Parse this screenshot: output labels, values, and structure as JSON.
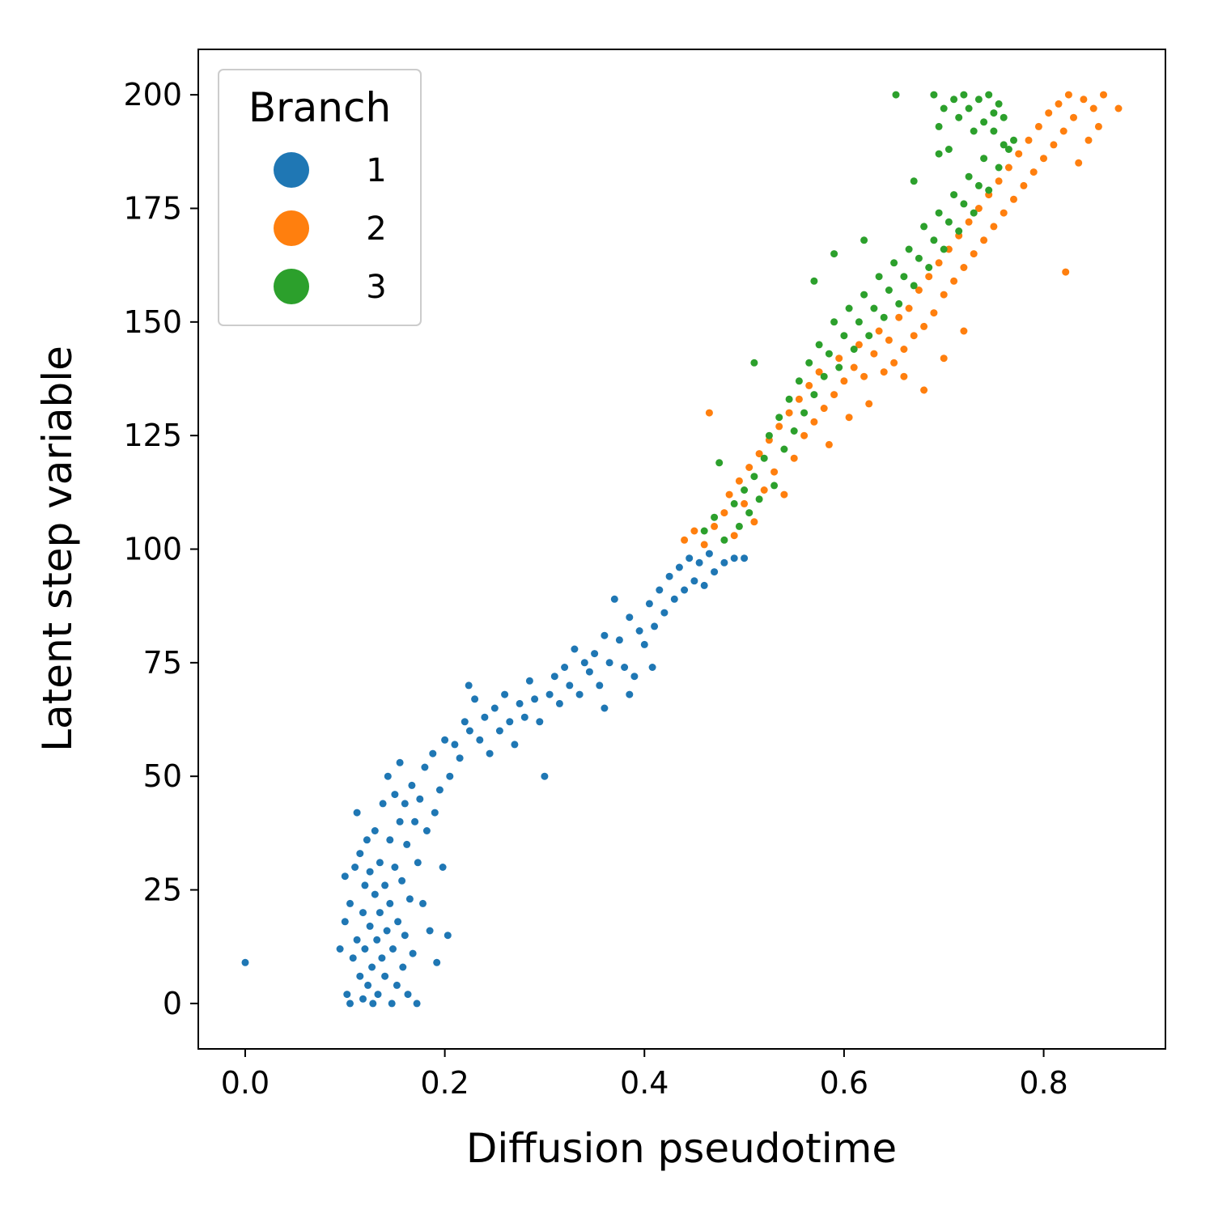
{
  "chart_data": {
    "type": "scatter",
    "xlabel": "Diffusion pseudotime",
    "ylabel": "Latent step variable",
    "xlim": [
      -0.047,
      0.922
    ],
    "ylim": [
      -10,
      210
    ],
    "x_ticks": [
      0.0,
      0.2,
      0.4,
      0.6,
      0.8
    ],
    "x_tick_labels": [
      "0.0",
      "0.2",
      "0.4",
      "0.6",
      "0.8"
    ],
    "y_ticks": [
      0,
      25,
      50,
      75,
      100,
      125,
      150,
      175,
      200
    ],
    "y_tick_labels": [
      "0",
      "25",
      "50",
      "75",
      "100",
      "125",
      "150",
      "175",
      "200"
    ],
    "grid": false,
    "legend": {
      "title": "Branch",
      "placement": "top-left"
    },
    "series": [
      {
        "name": "1",
        "color": "#1f77b4",
        "points": [
          [
            0.0,
            9
          ],
          [
            0.095,
            12
          ],
          [
            0.1,
            28
          ],
          [
            0.1,
            18
          ],
          [
            0.102,
            2
          ],
          [
            0.105,
            0
          ],
          [
            0.105,
            22
          ],
          [
            0.108,
            10
          ],
          [
            0.11,
            30
          ],
          [
            0.112,
            42
          ],
          [
            0.112,
            14
          ],
          [
            0.115,
            6
          ],
          [
            0.115,
            33
          ],
          [
            0.118,
            20
          ],
          [
            0.118,
            1
          ],
          [
            0.12,
            26
          ],
          [
            0.12,
            12
          ],
          [
            0.122,
            36
          ],
          [
            0.123,
            4
          ],
          [
            0.125,
            17
          ],
          [
            0.125,
            29
          ],
          [
            0.127,
            8
          ],
          [
            0.128,
            0
          ],
          [
            0.13,
            24
          ],
          [
            0.13,
            38
          ],
          [
            0.132,
            14
          ],
          [
            0.133,
            2
          ],
          [
            0.135,
            20
          ],
          [
            0.135,
            31
          ],
          [
            0.137,
            10
          ],
          [
            0.138,
            44
          ],
          [
            0.14,
            26
          ],
          [
            0.14,
            6
          ],
          [
            0.142,
            16
          ],
          [
            0.143,
            50
          ],
          [
            0.145,
            36
          ],
          [
            0.145,
            22
          ],
          [
            0.147,
            0
          ],
          [
            0.148,
            12
          ],
          [
            0.15,
            46
          ],
          [
            0.15,
            30
          ],
          [
            0.152,
            4
          ],
          [
            0.153,
            18
          ],
          [
            0.155,
            40
          ],
          [
            0.155,
            53
          ],
          [
            0.157,
            27
          ],
          [
            0.158,
            8
          ],
          [
            0.16,
            15
          ],
          [
            0.16,
            44
          ],
          [
            0.162,
            35
          ],
          [
            0.163,
            2
          ],
          [
            0.165,
            23
          ],
          [
            0.167,
            48
          ],
          [
            0.168,
            11
          ],
          [
            0.17,
            40
          ],
          [
            0.172,
            0
          ],
          [
            0.173,
            31
          ],
          [
            0.175,
            45
          ],
          [
            0.178,
            22
          ],
          [
            0.18,
            52
          ],
          [
            0.182,
            38
          ],
          [
            0.185,
            16
          ],
          [
            0.188,
            55
          ],
          [
            0.19,
            42
          ],
          [
            0.192,
            9
          ],
          [
            0.195,
            47
          ],
          [
            0.198,
            30
          ],
          [
            0.2,
            58
          ],
          [
            0.203,
            15
          ],
          [
            0.205,
            50
          ],
          [
            0.21,
            57
          ],
          [
            0.215,
            54
          ],
          [
            0.22,
            62
          ],
          [
            0.224,
            70
          ],
          [
            0.225,
            60
          ],
          [
            0.23,
            67
          ],
          [
            0.235,
            58
          ],
          [
            0.24,
            63
          ],
          [
            0.245,
            55
          ],
          [
            0.25,
            65
          ],
          [
            0.255,
            60
          ],
          [
            0.26,
            68
          ],
          [
            0.265,
            62
          ],
          [
            0.27,
            57
          ],
          [
            0.275,
            66
          ],
          [
            0.28,
            63
          ],
          [
            0.285,
            71
          ],
          [
            0.29,
            67
          ],
          [
            0.295,
            62
          ],
          [
            0.3,
            50
          ],
          [
            0.305,
            68
          ],
          [
            0.31,
            72
          ],
          [
            0.315,
            66
          ],
          [
            0.32,
            74
          ],
          [
            0.325,
            70
          ],
          [
            0.33,
            78
          ],
          [
            0.335,
            68
          ],
          [
            0.34,
            75
          ],
          [
            0.345,
            73
          ],
          [
            0.35,
            77
          ],
          [
            0.355,
            70
          ],
          [
            0.36,
            81
          ],
          [
            0.365,
            75
          ],
          [
            0.37,
            89
          ],
          [
            0.375,
            80
          ],
          [
            0.38,
            74
          ],
          [
            0.385,
            85
          ],
          [
            0.39,
            72
          ],
          [
            0.395,
            82
          ],
          [
            0.4,
            79
          ],
          [
            0.405,
            88
          ],
          [
            0.41,
            83
          ],
          [
            0.415,
            91
          ],
          [
            0.42,
            86
          ],
          [
            0.425,
            94
          ],
          [
            0.43,
            89
          ],
          [
            0.435,
            96
          ],
          [
            0.44,
            91
          ],
          [
            0.445,
            98
          ],
          [
            0.45,
            93
          ],
          [
            0.455,
            97
          ],
          [
            0.46,
            92
          ],
          [
            0.465,
            99
          ],
          [
            0.47,
            95
          ],
          [
            0.48,
            97
          ],
          [
            0.49,
            98
          ],
          [
            0.5,
            98
          ],
          [
            0.408,
            74
          ],
          [
            0.385,
            68
          ],
          [
            0.36,
            65
          ]
        ]
      },
      {
        "name": "2",
        "color": "#ff7f0e",
        "points": [
          [
            0.44,
            102
          ],
          [
            0.45,
            104
          ],
          [
            0.46,
            101
          ],
          [
            0.465,
            130
          ],
          [
            0.47,
            105
          ],
          [
            0.48,
            108
          ],
          [
            0.485,
            112
          ],
          [
            0.49,
            103
          ],
          [
            0.495,
            115
          ],
          [
            0.5,
            110
          ],
          [
            0.505,
            118
          ],
          [
            0.51,
            106
          ],
          [
            0.515,
            121
          ],
          [
            0.52,
            113
          ],
          [
            0.525,
            124
          ],
          [
            0.53,
            117
          ],
          [
            0.535,
            127
          ],
          [
            0.54,
            112
          ],
          [
            0.545,
            130
          ],
          [
            0.55,
            120
          ],
          [
            0.555,
            133
          ],
          [
            0.56,
            125
          ],
          [
            0.565,
            136
          ],
          [
            0.57,
            128
          ],
          [
            0.575,
            139
          ],
          [
            0.58,
            131
          ],
          [
            0.585,
            123
          ],
          [
            0.59,
            134
          ],
          [
            0.595,
            142
          ],
          [
            0.6,
            137
          ],
          [
            0.605,
            129
          ],
          [
            0.61,
            140
          ],
          [
            0.615,
            145
          ],
          [
            0.62,
            138
          ],
          [
            0.625,
            132
          ],
          [
            0.63,
            143
          ],
          [
            0.635,
            148
          ],
          [
            0.64,
            139
          ],
          [
            0.645,
            146
          ],
          [
            0.65,
            141
          ],
          [
            0.655,
            151
          ],
          [
            0.66,
            144
          ],
          [
            0.665,
            153
          ],
          [
            0.67,
            147
          ],
          [
            0.675,
            157
          ],
          [
            0.68,
            149
          ],
          [
            0.685,
            160
          ],
          [
            0.69,
            152
          ],
          [
            0.695,
            163
          ],
          [
            0.7,
            156
          ],
          [
            0.705,
            166
          ],
          [
            0.71,
            159
          ],
          [
            0.715,
            169
          ],
          [
            0.72,
            162
          ],
          [
            0.725,
            172
          ],
          [
            0.73,
            165
          ],
          [
            0.735,
            175
          ],
          [
            0.74,
            168
          ],
          [
            0.745,
            178
          ],
          [
            0.75,
            171
          ],
          [
            0.755,
            181
          ],
          [
            0.76,
            174
          ],
          [
            0.765,
            184
          ],
          [
            0.77,
            177
          ],
          [
            0.775,
            187
          ],
          [
            0.78,
            180
          ],
          [
            0.785,
            190
          ],
          [
            0.79,
            183
          ],
          [
            0.795,
            193
          ],
          [
            0.8,
            186
          ],
          [
            0.805,
            196
          ],
          [
            0.81,
            189
          ],
          [
            0.815,
            198
          ],
          [
            0.82,
            192
          ],
          [
            0.825,
            200
          ],
          [
            0.83,
            195
          ],
          [
            0.835,
            185
          ],
          [
            0.84,
            199
          ],
          [
            0.845,
            190
          ],
          [
            0.85,
            197
          ],
          [
            0.855,
            193
          ],
          [
            0.86,
            200
          ],
          [
            0.875,
            197
          ],
          [
            0.822,
            161
          ],
          [
            0.7,
            142
          ],
          [
            0.72,
            148
          ],
          [
            0.68,
            135
          ],
          [
            0.66,
            138
          ]
        ]
      },
      {
        "name": "3",
        "color": "#2ca02c",
        "points": [
          [
            0.46,
            104
          ],
          [
            0.47,
            107
          ],
          [
            0.475,
            119
          ],
          [
            0.48,
            102
          ],
          [
            0.49,
            110
          ],
          [
            0.495,
            105
          ],
          [
            0.5,
            113
          ],
          [
            0.505,
            108
          ],
          [
            0.51,
            141
          ],
          [
            0.51,
            116
          ],
          [
            0.515,
            111
          ],
          [
            0.52,
            120
          ],
          [
            0.525,
            125
          ],
          [
            0.53,
            114
          ],
          [
            0.535,
            129
          ],
          [
            0.54,
            122
          ],
          [
            0.545,
            133
          ],
          [
            0.55,
            126
          ],
          [
            0.555,
            137
          ],
          [
            0.56,
            130
          ],
          [
            0.565,
            141
          ],
          [
            0.57,
            134
          ],
          [
            0.575,
            145
          ],
          [
            0.58,
            138
          ],
          [
            0.585,
            143
          ],
          [
            0.59,
            150
          ],
          [
            0.595,
            140
          ],
          [
            0.6,
            147
          ],
          [
            0.605,
            153
          ],
          [
            0.61,
            144
          ],
          [
            0.615,
            150
          ],
          [
            0.62,
            156
          ],
          [
            0.625,
            147
          ],
          [
            0.63,
            153
          ],
          [
            0.635,
            160
          ],
          [
            0.64,
            151
          ],
          [
            0.645,
            157
          ],
          [
            0.65,
            163
          ],
          [
            0.652,
            200
          ],
          [
            0.655,
            154
          ],
          [
            0.66,
            160
          ],
          [
            0.665,
            166
          ],
          [
            0.67,
            158
          ],
          [
            0.675,
            164
          ],
          [
            0.68,
            171
          ],
          [
            0.685,
            162
          ],
          [
            0.69,
            168
          ],
          [
            0.695,
            174
          ],
          [
            0.7,
            166
          ],
          [
            0.705,
            172
          ],
          [
            0.71,
            178
          ],
          [
            0.715,
            170
          ],
          [
            0.72,
            176
          ],
          [
            0.725,
            182
          ],
          [
            0.73,
            174
          ],
          [
            0.735,
            180
          ],
          [
            0.74,
            186
          ],
          [
            0.745,
            179
          ],
          [
            0.75,
            192
          ],
          [
            0.755,
            184
          ],
          [
            0.76,
            195
          ],
          [
            0.765,
            188
          ],
          [
            0.77,
            190
          ],
          [
            0.69,
            200
          ],
          [
            0.695,
            193
          ],
          [
            0.7,
            197
          ],
          [
            0.705,
            188
          ],
          [
            0.71,
            199
          ],
          [
            0.715,
            195
          ],
          [
            0.72,
            200
          ],
          [
            0.725,
            197
          ],
          [
            0.73,
            192
          ],
          [
            0.735,
            199
          ],
          [
            0.74,
            194
          ],
          [
            0.745,
            200
          ],
          [
            0.75,
            196
          ],
          [
            0.755,
            198
          ],
          [
            0.76,
            189
          ],
          [
            0.67,
            181
          ],
          [
            0.695,
            187
          ],
          [
            0.59,
            165
          ],
          [
            0.57,
            159
          ],
          [
            0.62,
            168
          ]
        ]
      }
    ]
  }
}
